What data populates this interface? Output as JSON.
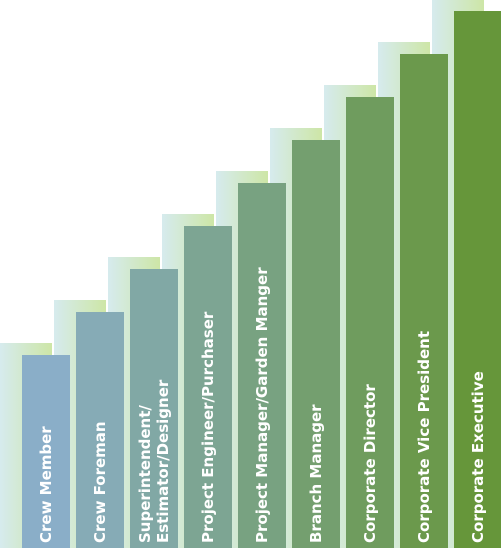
{
  "steps": [
    {
      "lines": [
        "Crew Member"
      ]
    },
    {
      "lines": [
        "Crew Foreman"
      ]
    },
    {
      "lines": [
        "Superintendent/",
        "Estimator/Designer"
      ]
    },
    {
      "lines": [
        "Project Engineer/Purchaser"
      ]
    },
    {
      "lines": [
        "Project Manager/Garden Manger"
      ]
    },
    {
      "lines": [
        "Branch Manager"
      ]
    },
    {
      "lines": [
        "Corporate Director"
      ]
    },
    {
      "lines": [
        "Corporate Vice President"
      ]
    },
    {
      "lines": [
        "Corporate Executive"
      ]
    }
  ]
}
